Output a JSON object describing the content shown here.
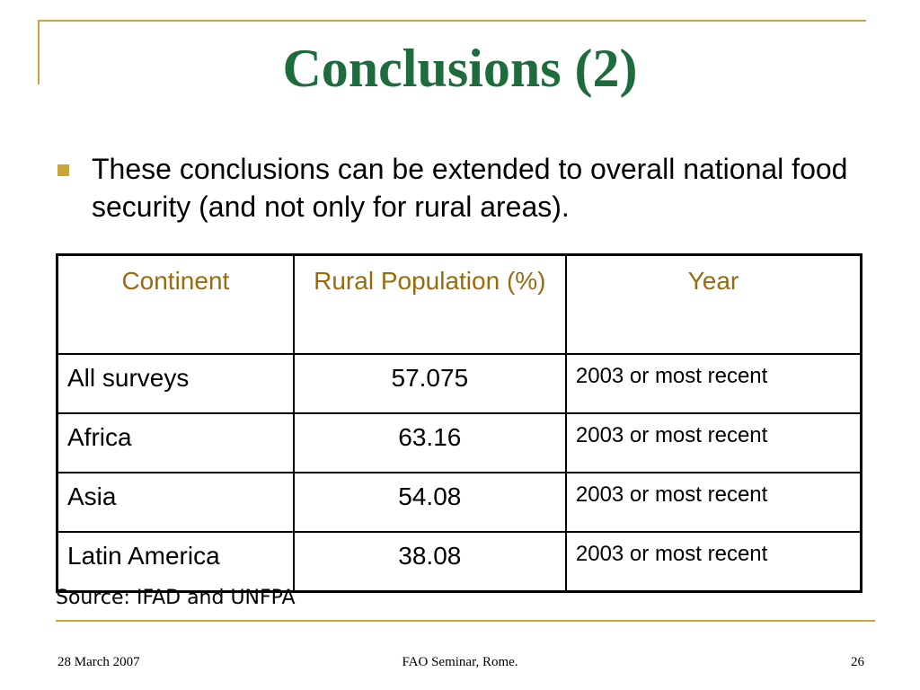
{
  "slide": {
    "title": "Conclusions (2)",
    "bullet": "These conclusions can be extended to overall national food security (and not only for rural areas).",
    "table": {
      "headers": [
        "Continent",
        "Rural Population (%)",
        "Year"
      ],
      "rows": [
        [
          "All surveys",
          "57.075",
          "2003 or most recent"
        ],
        [
          "Africa",
          "63.16",
          "2003 or most recent"
        ],
        [
          "Asia",
          "54.08",
          "2003 or most recent"
        ],
        [
          "Latin America",
          "38.08",
          "2003 or most recent"
        ]
      ]
    },
    "source": "Source: IFAD and UNFPA",
    "footer": {
      "date": "28 March 2007",
      "event": "FAO Seminar, Rome.",
      "page_number": "26"
    }
  },
  "colors": {
    "title": "#1e6b3c",
    "accent_gold": "#c9a53a",
    "header_text": "#9a6a0f"
  }
}
